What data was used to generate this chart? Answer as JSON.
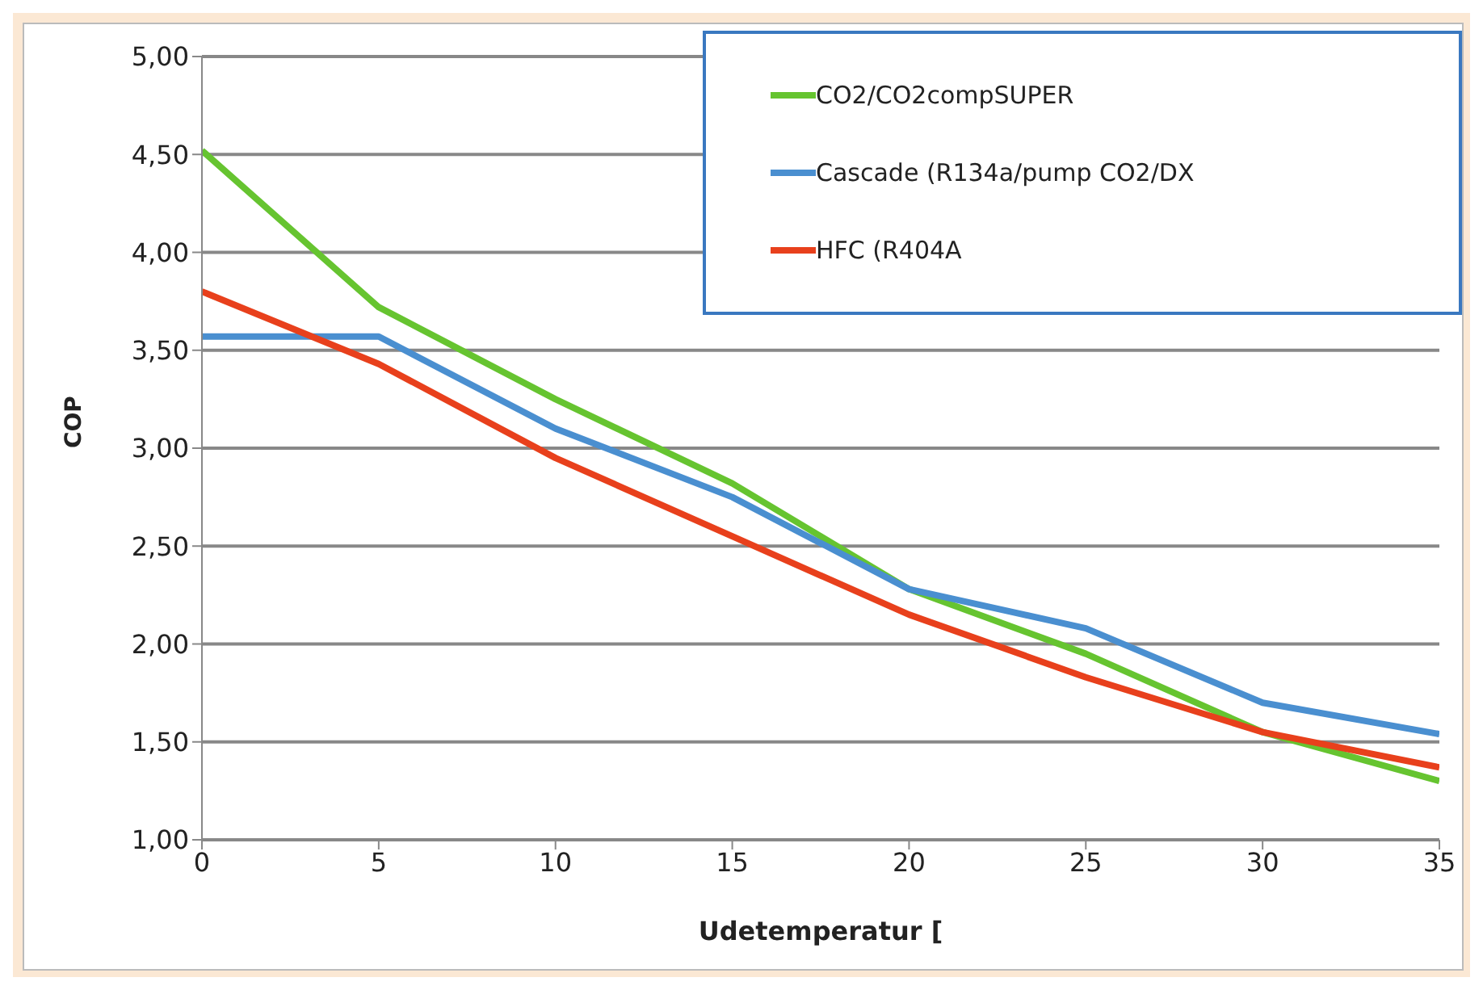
{
  "chart_data": {
    "type": "line",
    "xlabel": "Udetemperatur [",
    "ylabel": "COP",
    "x": [
      0,
      5,
      10,
      15,
      20,
      25,
      30,
      35
    ],
    "series": [
      {
        "name": "CO2/CO2compSUPER",
        "color": "#66c430",
        "values": [
          4.52,
          3.72,
          3.25,
          2.82,
          2.28,
          1.95,
          1.55,
          1.3
        ]
      },
      {
        "name": "Cascade (R134a/pump CO2/DX",
        "color": "#4a8fd0",
        "values": [
          3.57,
          3.57,
          3.1,
          2.75,
          2.28,
          2.08,
          1.7,
          1.54
        ]
      },
      {
        "name": "HFC (R404A",
        "color": "#e8401c",
        "values": [
          3.8,
          3.43,
          2.95,
          2.55,
          2.15,
          1.83,
          1.55,
          1.37
        ]
      }
    ],
    "xlim": [
      0,
      35
    ],
    "xticks": [
      0,
      5,
      10,
      15,
      20,
      25,
      30,
      35
    ],
    "ylim": [
      1,
      5
    ],
    "yticks": [
      {
        "value": 1,
        "label": "1,00"
      },
      {
        "value": 1.5,
        "label": "1,50"
      },
      {
        "value": 2,
        "label": "2,00"
      },
      {
        "value": 2.5,
        "label": "2,50"
      },
      {
        "value": 3,
        "label": "3,00"
      },
      {
        "value": 3.5,
        "label": "3,50"
      },
      {
        "value": 4,
        "label": "4,00"
      },
      {
        "value": 4.5,
        "label": "4,50"
      },
      {
        "value": 5,
        "label": "5,00"
      }
    ],
    "grid": "y",
    "legend": "top right",
    "marker": "none",
    "line_style": "solid"
  }
}
